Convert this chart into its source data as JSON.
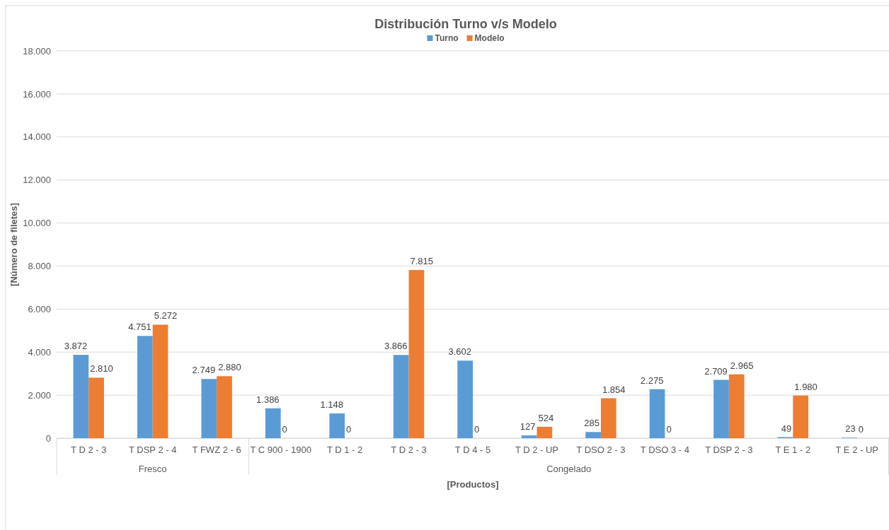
{
  "chart_data": {
    "type": "bar",
    "title": "Distribución Turno v/s Modelo",
    "xlabel": "[Productos]",
    "ylabel": "[Número de filetes]",
    "categories": [
      "T D 2 - 3",
      "T DSP 2 - 4",
      "T FWZ 2 - 6",
      "T C 900 - 1900",
      "T D 1 - 2",
      "T D 2 - 3",
      "T D 4 - 5",
      "T D 2 - UP",
      "T DSO 2 - 3",
      "T DSO 3 - 4",
      "T DSP 2 - 3",
      "T E 1 - 2",
      "T E 2 - UP"
    ],
    "series": [
      {
        "name": "Turno",
        "color": "#5b9bd5",
        "values": [
          3872,
          4751,
          2749,
          1386,
          1148,
          3866,
          3602,
          127,
          285,
          2275,
          2709,
          49,
          23
        ],
        "value_labels": [
          "3.872",
          "4.751",
          "2.749",
          "1.386",
          "1.148",
          "3.866",
          "3.602",
          "127",
          "285",
          "2.275",
          "2.709",
          "49",
          "23"
        ]
      },
      {
        "name": "Modelo",
        "color": "#ed7d31",
        "values": [
          2810,
          5272,
          2880,
          0,
          0,
          7815,
          0,
          524,
          1854,
          0,
          2965,
          1980,
          0
        ],
        "value_labels": [
          "2.810",
          "5.272",
          "2.880",
          "0",
          "0",
          "7.815",
          "0",
          "524",
          "1.854",
          "0",
          "2.965",
          "1.980",
          "0"
        ]
      }
    ],
    "ylim": [
      0,
      18000
    ],
    "yticks": [
      {
        "value": 0,
        "label": "0"
      },
      {
        "value": 2000,
        "label": "2.000"
      },
      {
        "value": 4000,
        "label": "4.000"
      },
      {
        "value": 6000,
        "label": "6.000"
      },
      {
        "value": 8000,
        "label": "8.000"
      },
      {
        "value": 10000,
        "label": "10.000"
      },
      {
        "value": 12000,
        "label": "12.000"
      },
      {
        "value": 14000,
        "label": "14.000"
      },
      {
        "value": 16000,
        "label": "16.000"
      },
      {
        "value": 18000,
        "label": "18.000"
      }
    ],
    "annotations": [
      "Fresco",
      "Congelado"
    ],
    "grid": "y",
    "legend": "top"
  }
}
